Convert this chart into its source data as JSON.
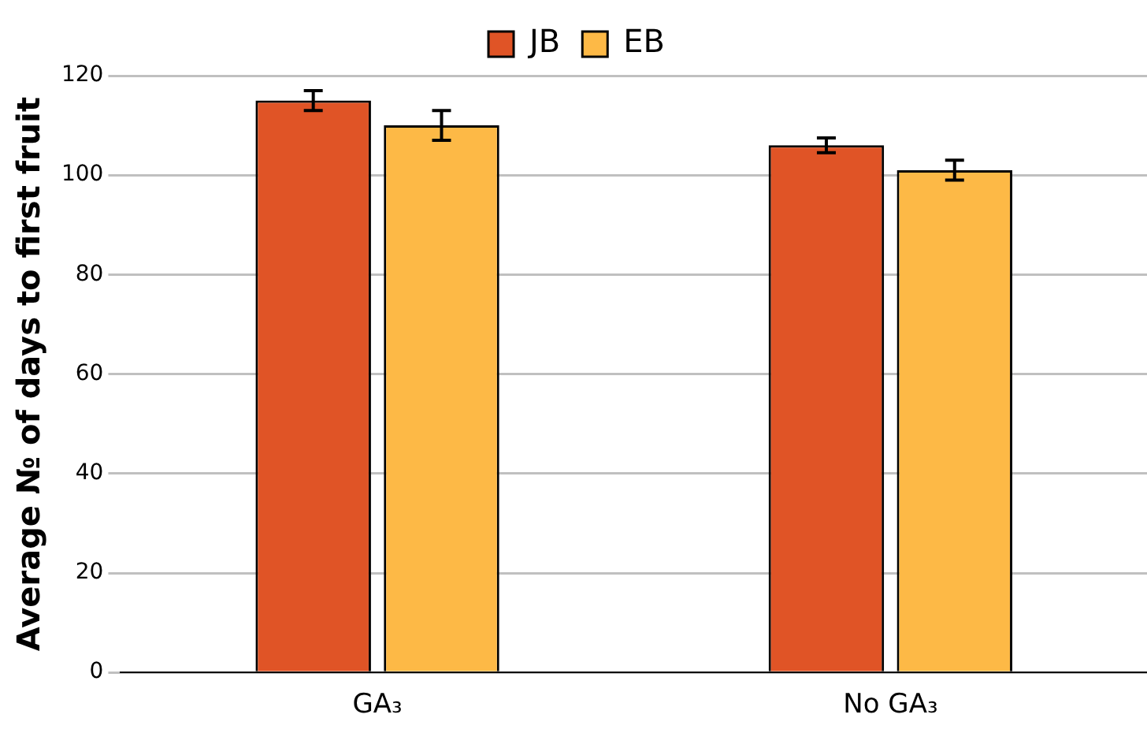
{
  "chart_data": {
    "type": "bar",
    "ylabel": "Average № of days to first fruit",
    "categories": [
      "GA₃",
      "No GA₃"
    ],
    "series": [
      {
        "name": "JB",
        "color": "#e05426",
        "values": [
          115,
          106
        ],
        "errors": [
          2,
          1.5
        ]
      },
      {
        "name": "EB",
        "color": "#fdb946",
        "values": [
          110,
          101
        ],
        "errors": [
          3,
          2
        ]
      }
    ],
    "ylim": [
      0,
      120
    ],
    "yticks": [
      0,
      20,
      40,
      60,
      80,
      100,
      120
    ],
    "grid": "y",
    "legend": "top"
  }
}
